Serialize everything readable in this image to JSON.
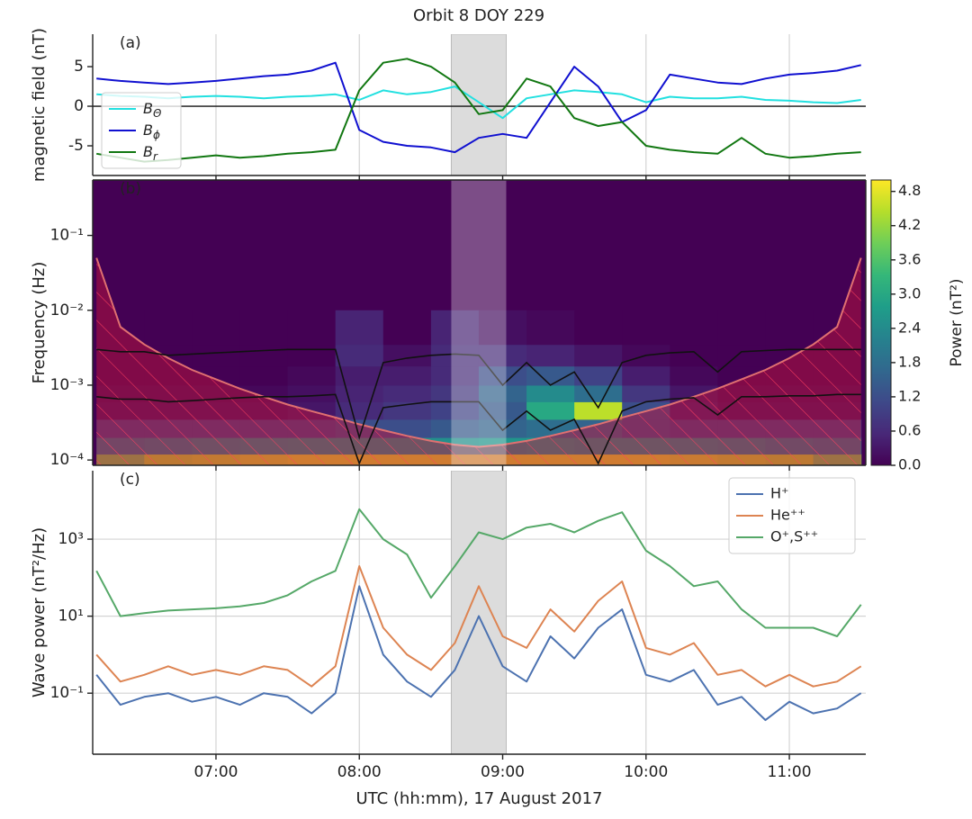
{
  "chart_data": [
    {
      "type": "line",
      "title": "Orbit 8 DOY 229",
      "panel_label": "(a)",
      "ylabel": "magnetic field (nT)",
      "x": [
        370,
        380,
        390,
        400,
        410,
        420,
        430,
        440,
        450,
        460,
        470,
        480,
        490,
        500,
        510,
        520,
        530,
        540,
        550,
        560,
        570,
        580,
        590,
        600,
        610,
        620,
        630,
        640,
        650,
        660,
        670,
        680,
        690
      ],
      "series": [
        {
          "name": "BΘ",
          "color": "#22e0e0",
          "values": [
            1.5,
            1.3,
            1.2,
            1.0,
            1.2,
            1.3,
            1.2,
            1.0,
            1.2,
            1.3,
            1.5,
            0.8,
            2.0,
            1.5,
            1.8,
            2.5,
            0.5,
            -1.5,
            1.0,
            1.5,
            2.0,
            1.8,
            1.5,
            0.5,
            1.2,
            1.0,
            1.0,
            1.2,
            0.8,
            0.7,
            0.5,
            0.4,
            0.8
          ]
        },
        {
          "name": "Bϕ",
          "color": "#1010d0",
          "values": [
            3.5,
            3.2,
            3.0,
            2.8,
            3.0,
            3.2,
            3.5,
            3.8,
            4.0,
            4.5,
            5.5,
            -3.0,
            -4.5,
            -5.0,
            -5.2,
            -5.8,
            -4.0,
            -3.5,
            -4.0,
            0.5,
            5.0,
            2.5,
            -2.0,
            -0.5,
            4.0,
            3.5,
            3.0,
            2.8,
            3.5,
            4.0,
            4.2,
            4.5,
            5.2
          ]
        },
        {
          "name": "Br",
          "color": "#117711",
          "values": [
            -6.0,
            -6.5,
            -7.0,
            -6.8,
            -6.5,
            -6.2,
            -6.5,
            -6.3,
            -6.0,
            -5.8,
            -5.5,
            2.0,
            5.5,
            6.0,
            5.0,
            3.0,
            -1.0,
            -0.5,
            3.5,
            2.5,
            -1.5,
            -2.5,
            -2.0,
            -5.0,
            -5.5,
            -5.8,
            -6.0,
            -4.0,
            -6.0,
            -6.5,
            -6.3,
            -6.0,
            -5.8
          ]
        }
      ],
      "xlim": [
        368.4,
        692
      ],
      "ylim": [
        -8.75,
        9.1
      ],
      "yticks": [
        -5,
        0,
        5
      ],
      "xticks": [
        420,
        480,
        540,
        600,
        660
      ],
      "grid": "x",
      "zero_line": true,
      "highlight": [
        518.5,
        541.5
      ],
      "legend": "lower left"
    },
    {
      "type": "heatmap",
      "panel_label": "(b)",
      "ylabel": "Frequency (Hz)",
      "log_y": true,
      "xlim": [
        368.4,
        692
      ],
      "ylim": [
        8.5e-05,
        0.55
      ],
      "xticks": [
        420,
        480,
        540,
        600,
        660
      ],
      "yticks": [
        {
          "value": 0.0001,
          "label": "10⁻⁴"
        },
        {
          "value": 0.001,
          "label": "10⁻³"
        },
        {
          "value": 0.01,
          "label": "10⁻²"
        },
        {
          "value": 0.1,
          "label": "10⁻¹"
        }
      ],
      "x_edges": [
        370,
        390,
        410,
        430,
        450,
        470,
        490,
        510,
        530,
        550,
        570,
        590,
        610,
        630,
        650,
        670,
        690
      ],
      "y_edges": [
        8.5e-05,
        0.00012,
        0.0002,
        0.00035,
        0.0006,
        0.001,
        0.0018,
        0.0035,
        0.01
      ],
      "values": [
        [
          4.0,
          4.5,
          4.6,
          4.7,
          4.8,
          4.8,
          4.8,
          4.8,
          4.8,
          4.8,
          4.8,
          4.8,
          4.7,
          4.6,
          4.5,
          4.0
        ],
        [
          2.0,
          2.2,
          2.4,
          2.5,
          2.6,
          2.6,
          2.6,
          2.5,
          2.6,
          2.7,
          2.6,
          2.6,
          2.5,
          2.4,
          2.2,
          2.0
        ],
        [
          1.0,
          1.0,
          1.0,
          1.0,
          1.0,
          1.2,
          1.2,
          1.4,
          1.6,
          1.8,
          1.6,
          1.2,
          1.0,
          1.0,
          1.0,
          1.0
        ],
        [
          0.2,
          0.2,
          0.2,
          0.2,
          0.3,
          0.6,
          0.8,
          1.0,
          1.4,
          3.0,
          4.5,
          1.2,
          0.4,
          0.2,
          0.2,
          0.2
        ],
        [
          0.1,
          0.1,
          0.1,
          0.1,
          0.2,
          0.5,
          0.6,
          0.8,
          1.6,
          2.4,
          1.8,
          0.8,
          0.3,
          0.1,
          0.1,
          0.1
        ],
        [
          0,
          0,
          0,
          0,
          0.1,
          0.4,
          0.4,
          0.6,
          1.2,
          1.4,
          1.0,
          0.4,
          0.1,
          0,
          0,
          0
        ],
        [
          0,
          0,
          0,
          0,
          0,
          0.6,
          0.2,
          0.6,
          0.6,
          0.5,
          0.3,
          0.1,
          0,
          0,
          0,
          0
        ],
        [
          0,
          0,
          0,
          0,
          0,
          0.5,
          0,
          0.5,
          0.2,
          0.1,
          0,
          0,
          0,
          0,
          0,
          0
        ]
      ],
      "clim": [
        0,
        5.0
      ],
      "colorbar_label": "Power (nT²)",
      "cticks": [
        {
          "value": 0,
          "label": "0.0"
        },
        {
          "value": 0.6,
          "label": "0.6"
        },
        {
          "value": 1.2,
          "label": "1.2"
        },
        {
          "value": 1.8,
          "label": "1.8"
        },
        {
          "value": 2.4,
          "label": "2.4"
        },
        {
          "value": 3.0,
          "label": "3.0"
        },
        {
          "value": 3.6,
          "label": "3.6"
        },
        {
          "value": 4.2,
          "label": "4.2"
        },
        {
          "value": 4.8,
          "label": "4.8"
        }
      ],
      "x": [
        370,
        380,
        390,
        400,
        410,
        420,
        430,
        440,
        450,
        460,
        470,
        480,
        490,
        500,
        510,
        520,
        530,
        540,
        550,
        560,
        570,
        580,
        590,
        600,
        610,
        620,
        630,
        640,
        650,
        660,
        670,
        680,
        690
      ],
      "series": [
        {
          "color": "#e07070",
          "hatch_below": true,
          "values": [
            0.05,
            0.006,
            0.0035,
            0.0023,
            0.0016,
            0.0012,
            0.0009,
            0.0007,
            0.00055,
            0.00045,
            0.00037,
            0.0003,
            0.00025,
            0.00021,
            0.00018,
            0.00016,
            0.00015,
            0.00016,
            0.00018,
            0.00021,
            0.00025,
            0.0003,
            0.00037,
            0.00045,
            0.00055,
            0.0007,
            0.0009,
            0.0012,
            0.0016,
            0.0023,
            0.0035,
            0.006,
            0.05
          ]
        },
        {
          "color": "#111111",
          "values": [
            0.003,
            0.0028,
            0.0028,
            0.0025,
            0.0026,
            0.0027,
            0.0028,
            0.0029,
            0.003,
            0.003,
            0.003,
            0.0002,
            0.002,
            0.0023,
            0.0025,
            0.0026,
            0.0025,
            0.001,
            0.002,
            0.001,
            0.0015,
            0.0005,
            0.002,
            0.0025,
            0.0027,
            0.0028,
            0.0015,
            0.0028,
            0.0029,
            0.003,
            0.003,
            0.003,
            0.003
          ]
        },
        {
          "color": "#111111",
          "values": [
            0.0007,
            0.00065,
            0.00065,
            0.0006,
            0.00062,
            0.00065,
            0.00068,
            0.0007,
            0.0007,
            0.00072,
            0.00075,
            9e-05,
            0.0005,
            0.00055,
            0.0006,
            0.0006,
            0.0006,
            0.00025,
            0.00045,
            0.00025,
            0.00035,
            9e-05,
            0.00045,
            0.0006,
            0.00065,
            0.00068,
            0.0004,
            0.0007,
            0.0007,
            0.00072,
            0.00072,
            0.00075,
            0.00075
          ]
        }
      ],
      "highlight": [
        518.5,
        541.5
      ]
    },
    {
      "type": "line",
      "panel_label": "(c)",
      "ylabel": "Wave power (nT²/Hz)",
      "xlabel": "UTC (hh:mm), 17 August 2017",
      "log_y": true,
      "x": [
        370,
        380,
        390,
        400,
        410,
        420,
        430,
        440,
        450,
        460,
        470,
        480,
        490,
        500,
        510,
        520,
        530,
        540,
        550,
        560,
        570,
        580,
        590,
        600,
        610,
        620,
        630,
        640,
        650,
        660,
        670,
        680,
        690
      ],
      "series": [
        {
          "name": "H⁺",
          "color": "#4c72b0",
          "values": [
            0.3,
            0.05,
            0.08,
            0.1,
            0.06,
            0.08,
            0.05,
            0.1,
            0.08,
            0.03,
            0.1,
            60,
            1.0,
            0.2,
            0.08,
            0.4,
            10,
            0.5,
            0.2,
            3,
            0.8,
            5,
            15,
            0.3,
            0.2,
            0.4,
            0.05,
            0.08,
            0.02,
            0.06,
            0.03,
            0.04,
            0.1
          ]
        },
        {
          "name": "He⁺⁺",
          "color": "#dd8452",
          "values": [
            1.0,
            0.2,
            0.3,
            0.5,
            0.3,
            0.4,
            0.3,
            0.5,
            0.4,
            0.15,
            0.5,
            200,
            5,
            1,
            0.4,
            2,
            60,
            3,
            1.5,
            15,
            4,
            25,
            80,
            1.5,
            1,
            2,
            0.3,
            0.4,
            0.15,
            0.3,
            0.15,
            0.2,
            0.5
          ]
        },
        {
          "name": "O⁺,S⁺⁺",
          "color": "#55a868",
          "values": [
            150,
            10,
            12,
            14,
            15,
            16,
            18,
            22,
            35,
            80,
            150,
            6000,
            1000,
            400,
            30,
            200,
            1500,
            1000,
            2000,
            2500,
            1500,
            3000,
            5000,
            500,
            200,
            60,
            80,
            15,
            5,
            5,
            5,
            3,
            20
          ]
        }
      ],
      "xlim": [
        368.4,
        692
      ],
      "ylim": [
        0.0026,
        60000
      ],
      "yticks": [
        {
          "value": 0.1,
          "label": "10⁻¹"
        },
        {
          "value": 10,
          "label": "10¹"
        },
        {
          "value": 1000,
          "label": "10³"
        }
      ],
      "xticks": [
        {
          "value": 420,
          "label": "07:00"
        },
        {
          "value": 480,
          "label": "08:00"
        },
        {
          "value": 540,
          "label": "09:00"
        },
        {
          "value": 600,
          "label": "10:00"
        },
        {
          "value": 660,
          "label": "11:00"
        }
      ],
      "grid": "both",
      "highlight": [
        518.5,
        541.5
      ],
      "legend": "upper right"
    }
  ]
}
